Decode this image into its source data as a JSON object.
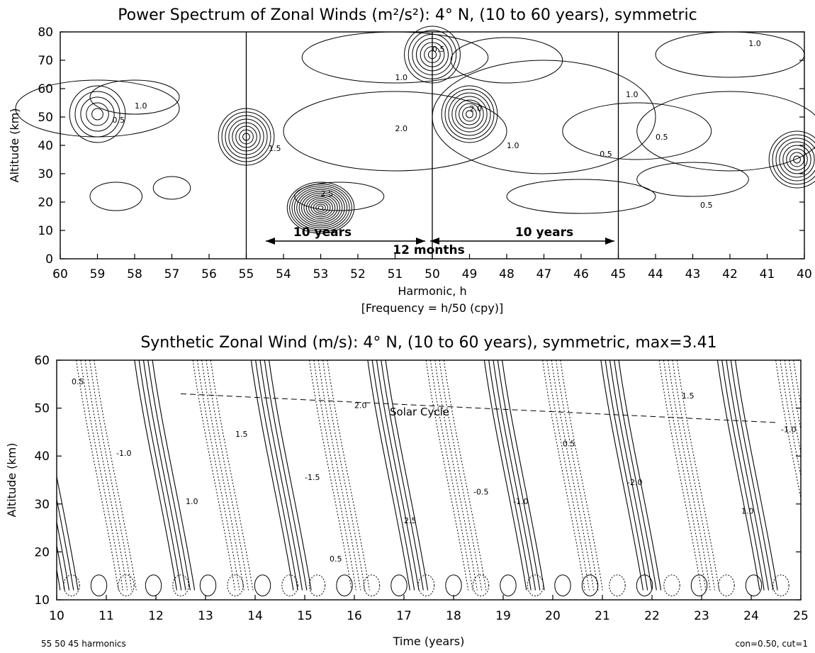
{
  "chart_data": [
    {
      "type": "contour",
      "title": "Power Spectrum of Zonal Winds (m²/s²): 4° N, (10 to 60 years), symmetric",
      "xlabel": "Harmonic, h",
      "xlabel2": "[Frequency = h/50 (cpy)]",
      "ylabel": "Altitude (km)",
      "xlim": [
        60,
        40
      ],
      "ylim": [
        0,
        80
      ],
      "x_ticks": [
        60,
        59,
        58,
        57,
        56,
        55,
        54,
        53,
        52,
        51,
        50,
        49,
        48,
        47,
        46,
        45,
        44,
        43,
        42,
        41,
        40
      ],
      "y_ticks": [
        0,
        10,
        20,
        30,
        40,
        50,
        60,
        70,
        80
      ],
      "vertical_lines": [
        55,
        50,
        45
      ],
      "annotations": {
        "ten_years_left": "10 years",
        "twelve_months": "12 months",
        "ten_years_right": "10 years"
      },
      "contour_labels": [
        "0.5",
        "1.0",
        "1.5",
        "2.0",
        "2.5",
        "3.0"
      ],
      "peaks": [
        {
          "h": 53,
          "alt": 18,
          "value": 3.0
        },
        {
          "h": 55,
          "alt": 43,
          "value": 3.0
        },
        {
          "h": 50,
          "alt": 72,
          "value": 2.5
        },
        {
          "h": 49,
          "alt": 51,
          "value": 3.0
        },
        {
          "h": 59,
          "alt": 51,
          "value": 1.5
        },
        {
          "h": 40.2,
          "alt": 35,
          "value": 3.0
        }
      ]
    },
    {
      "type": "contour",
      "title": "Synthetic Zonal Wind (m/s): 4° N, (10 to 60 years), symmetric, max=3.41",
      "xlabel": "Time (years)",
      "ylabel": "Altitude (km)",
      "xlim": [
        10,
        25
      ],
      "ylim": [
        10,
        60
      ],
      "x_ticks": [
        10,
        11,
        12,
        13,
        14,
        15,
        16,
        17,
        18,
        19,
        20,
        21,
        22,
        23,
        24,
        25
      ],
      "y_ticks": [
        10,
        20,
        30,
        40,
        50,
        60
      ],
      "max": 3.41,
      "annotation": "Solar Cycle",
      "contour_labels": [
        "0.5",
        "1.0",
        "1.5",
        "2.0",
        "2.5",
        "-0.5",
        "-1.0",
        "-1.5",
        "-2.0"
      ],
      "footer_left": "55 50 45 harmonics",
      "footer_right": "con=0.50, cut=1"
    }
  ]
}
